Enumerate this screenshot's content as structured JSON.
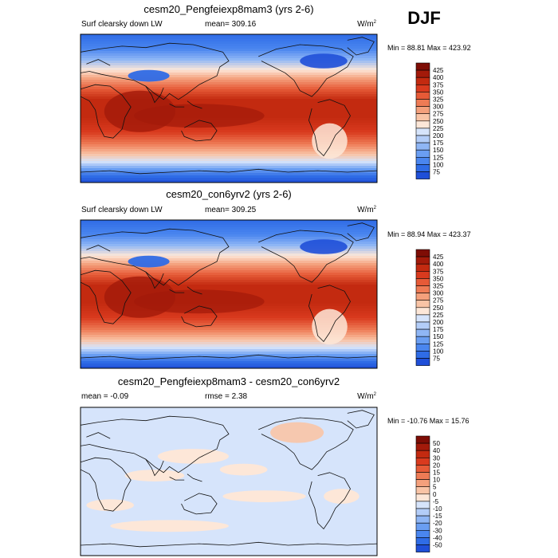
{
  "season": "DJF",
  "palette_abs": [
    "#000080",
    "#0f2fbf",
    "#1f4fd8",
    "#2f6ce6",
    "#4a86ef",
    "#6a9ef2",
    "#8fb6f5",
    "#b3cdf8",
    "#d6e4fb",
    "#fde7d8",
    "#f9c4a6",
    "#f4a07c",
    "#ee7b55",
    "#e65a37",
    "#d93a1e",
    "#c32a10",
    "#a31a0a",
    "#7e0d05"
  ],
  "palette_diff": [
    "#000080",
    "#0f2fbf",
    "#1f4fd8",
    "#2f6ce6",
    "#4a86ef",
    "#6a9ef2",
    "#8fb6f5",
    "#b3cdf8",
    "#d6e4fb",
    "#fde7d8",
    "#f9c4a6",
    "#f4a07c",
    "#ee7b55",
    "#e65a37",
    "#d93a1e",
    "#c32a10",
    "#a31a0a",
    "#7e0d05"
  ],
  "panels": [
    {
      "title": "cesm20_Pengfeiexp8mam3 (yrs 2-6)",
      "left_label": "Surf clearsky down LW",
      "center_label": "mean= 309.16",
      "units_main": "W/m",
      "units_sup": "2",
      "stats": "Min =  88.81 Max = 423.92",
      "field": "abs",
      "levels": [
        "425",
        "400",
        "375",
        "350",
        "325",
        "300",
        "275",
        "250",
        "225",
        "200",
        "175",
        "150",
        "125",
        "100",
        "75"
      ]
    },
    {
      "title": "cesm20_con6yrv2 (yrs 2-6)",
      "left_label": "Surf clearsky down LW",
      "center_label": "mean= 309.25",
      "units_main": "W/m",
      "units_sup": "2",
      "stats": "Min =  88.94 Max = 423.37",
      "field": "abs",
      "levels": [
        "425",
        "400",
        "375",
        "350",
        "325",
        "300",
        "275",
        "250",
        "225",
        "200",
        "175",
        "150",
        "125",
        "100",
        "75"
      ]
    },
    {
      "title": "cesm20_Pengfeiexp8mam3 - cesm20_con6yrv2",
      "left_label": "mean =  -0.09",
      "center_label": "rmse =   2.38",
      "units_main": "W/m",
      "units_sup": "2",
      "stats": "Min = -10.76 Max =  15.76",
      "field": "diff",
      "levels": [
        "50",
        "40",
        "30",
        "20",
        "15",
        "10",
        "5",
        "0",
        "-5",
        "-10",
        "-15",
        "-20",
        "-30",
        "-40",
        "-50"
      ]
    }
  ],
  "chart_data": {
    "type": "heatmap",
    "variable": "Surf clearsky down LW",
    "units": "W/m2",
    "season": "DJF",
    "panels": [
      {
        "title": "cesm20_Pengfeiexp8mam3 (yrs 2-6)",
        "mean": 309.16,
        "min": 88.81,
        "max": 423.92,
        "contour_levels": [
          75,
          100,
          125,
          150,
          175,
          200,
          225,
          250,
          275,
          300,
          325,
          350,
          375,
          400,
          425
        ]
      },
      {
        "title": "cesm20_con6yrv2 (yrs 2-6)",
        "mean": 309.25,
        "min": 88.94,
        "max": 423.37,
        "contour_levels": [
          75,
          100,
          125,
          150,
          175,
          200,
          225,
          250,
          275,
          300,
          325,
          350,
          375,
          400,
          425
        ]
      },
      {
        "title": "cesm20_Pengfeiexp8mam3 - cesm20_con6yrv2",
        "mean": -0.09,
        "rmse": 2.38,
        "min": -10.76,
        "max": 15.76,
        "contour_levels": [
          -50,
          -40,
          -30,
          -20,
          -15,
          -10,
          -5,
          0,
          5,
          10,
          15,
          20,
          30,
          40,
          50
        ]
      }
    ]
  }
}
